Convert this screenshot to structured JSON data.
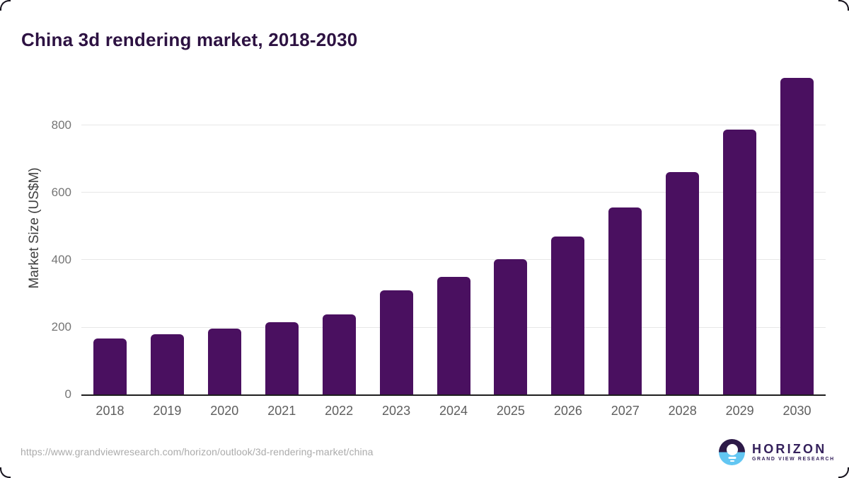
{
  "title": "China 3d rendering market, 2018-2030",
  "chart_data": {
    "type": "bar",
    "title": "China 3d rendering market, 2018-2030",
    "categories": [
      "2018",
      "2019",
      "2020",
      "2021",
      "2022",
      "2023",
      "2024",
      "2025",
      "2026",
      "2027",
      "2028",
      "2029",
      "2030"
    ],
    "values": [
      166,
      180,
      196,
      215,
      238,
      310,
      350,
      402,
      470,
      556,
      660,
      788,
      940
    ],
    "xlabel": "",
    "ylabel": "Market Size (US$M)",
    "yticks": [
      0,
      200,
      400,
      600,
      800
    ],
    "ylim": [
      0,
      962
    ],
    "grid": true,
    "legend": false,
    "bar_color": "#4a1060"
  },
  "colors": {
    "bar": "#4a1060",
    "title_text": "#2d1242",
    "axis_line": "#1e1e1e",
    "gridline": "#e7e7e7",
    "tick_text": "#757575",
    "category_text": "#5e5e5e",
    "url_text": "#ababab",
    "logo_purple": "#35215c",
    "logo_circle_top": "#2d1a48",
    "logo_circle_bottom": "#62c6f2"
  },
  "footer": {
    "url": "https://www.grandviewresearch.com/horizon/outlook/3d-rendering-market/china",
    "logo": {
      "name": "HORIZON",
      "subname": "GRAND VIEW RESEARCH"
    }
  }
}
